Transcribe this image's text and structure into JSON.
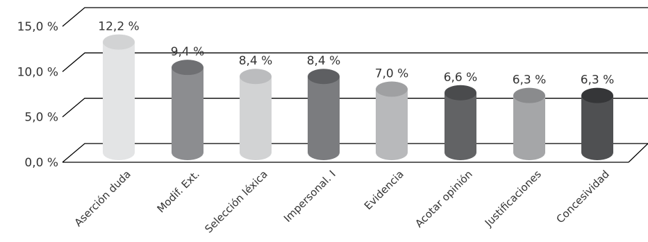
{
  "chart_data": {
    "type": "bar",
    "categories": [
      "Aserción duda",
      "Modif. Ext.",
      "Selección léxica",
      "Impersonal. I",
      "Evidencia",
      "Acotar opinión",
      "Justificaciones",
      "Concesividad"
    ],
    "values": [
      12.2,
      9.4,
      8.4,
      8.4,
      7.0,
      6.6,
      6.3,
      6.3
    ],
    "data_labels": [
      "12,2 %",
      "9,4 %",
      "8,4 %",
      "8,4 %",
      "7,0 %",
      "6,6 %",
      "6,3 %",
      "6,3 %"
    ],
    "y_ticks": [
      0,
      5,
      10,
      15
    ],
    "y_tick_labels": [
      "0,0 %",
      "5,0 %",
      "10,0 %",
      "15,0 %"
    ],
    "ylim": [
      0,
      15
    ],
    "grid": true,
    "legend": "none",
    "title": "",
    "xlabel": "",
    "ylabel": "",
    "colors": {
      "bar_fills": [
        "#e3e4e5",
        "#8c8d90",
        "#d2d3d4",
        "#7b7c7f",
        "#b8b9bb",
        "#626365",
        "#a5a6a8",
        "#4f5052"
      ],
      "bar_tops": [
        "#d2d3d4",
        "#6f7073",
        "#bbbcbe",
        "#5e5f62",
        "#9fa0a2",
        "#4a4b4d",
        "#8a8b8d",
        "#353638"
      ],
      "grid_line": "#000000",
      "text": "#333333"
    }
  }
}
